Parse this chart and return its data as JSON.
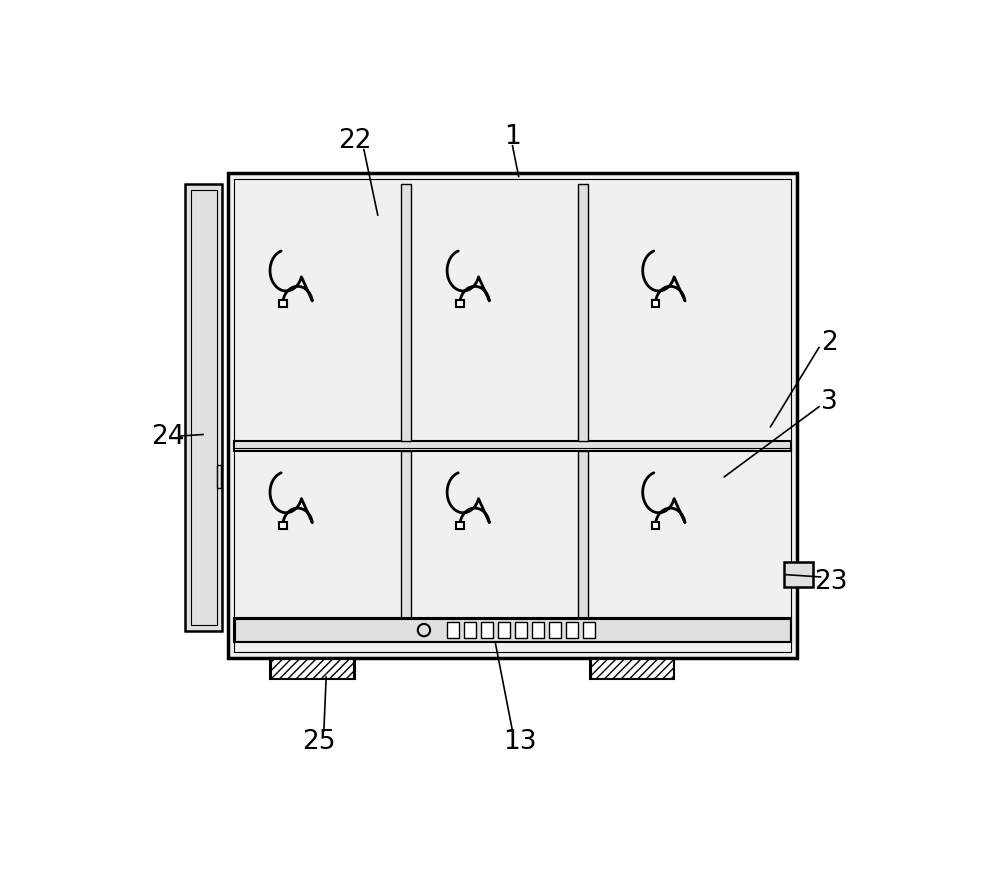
{
  "bg_color": "#ffffff",
  "lc": "#000000",
  "gray1": "#f0f0f0",
  "gray2": "#e0e0e0",
  "gray3": "#c8c8c8"
}
